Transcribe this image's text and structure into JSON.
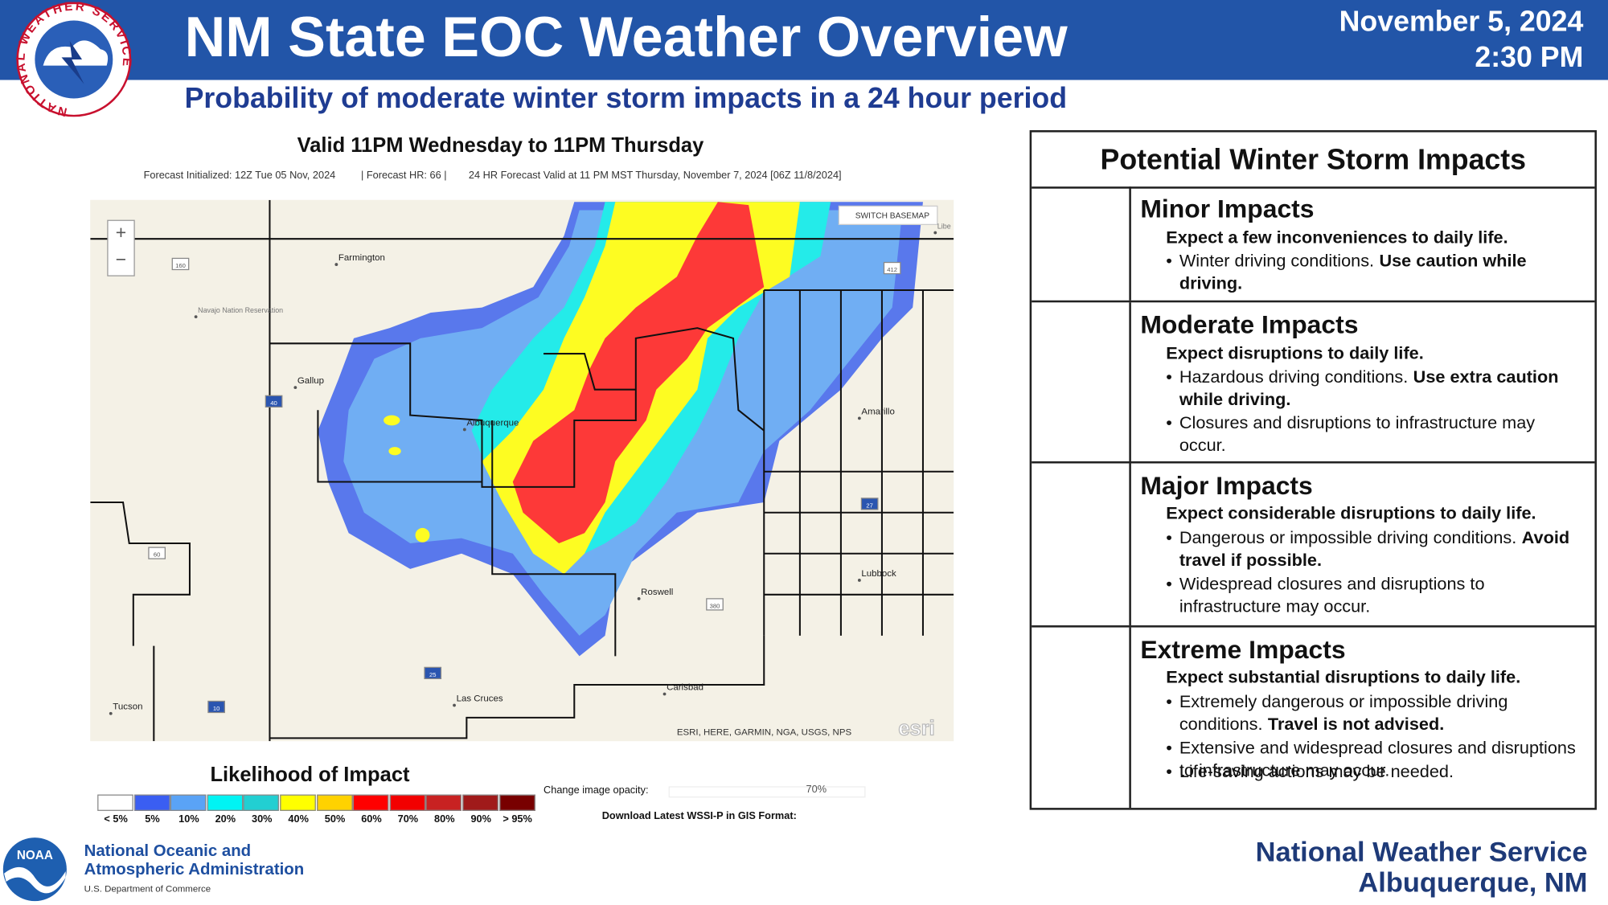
{
  "header": {
    "title": "NM State EOC Weather Overview",
    "date": "November 5, 2024",
    "time": "2:30 PM",
    "subtitle": "Probability of moderate winter storm impacts in a 24 hour period",
    "logo_text": "NATIONAL WEATHER SERVICE"
  },
  "map": {
    "title": "Valid 11PM Wednesday to 11PM Thursday",
    "info": [
      "Forecast Initialized: 12Z Tue 05 Nov, 2024",
      "| Forecast HR: 66 |",
      "24 HR Forecast Valid at 11 PM MST Thursday, November 7, 2024 [06Z 11/8/2024]"
    ],
    "switch": "SWITCH BASEMAP",
    "attribution": "ESRI, HERE, GARMIN, NGA, USGS, NPS",
    "esri": "esri",
    "zoom_in": "+",
    "zoom_out": "−",
    "places": [
      "Farmington",
      "Gallup",
      "Albuquerque",
      "Amarillo",
      "Lubbock",
      "Roswell",
      "Las Cruces",
      "Carlsbad",
      "Tucson",
      "Navajo Nation Reservation",
      "Libe"
    ],
    "shields": [
      "160",
      "40",
      "60",
      "25",
      "10",
      "27",
      "380",
      "412"
    ]
  },
  "legend": {
    "title": "Likelihood of Impact",
    "items": [
      {
        "label": "< 5%",
        "color": "#ffffff"
      },
      {
        "label": "5%",
        "color": "#3a5ef2"
      },
      {
        "label": "10%",
        "color": "#5aa3f6"
      },
      {
        "label": "20%",
        "color": "#00f4f4"
      },
      {
        "label": "30%",
        "color": "#22cfd2"
      },
      {
        "label": "40%",
        "color": "#ffff00"
      },
      {
        "label": "50%",
        "color": "#ffd200"
      },
      {
        "label": "60%",
        "color": "#ff0000"
      },
      {
        "label": "70%",
        "color": "#f20000"
      },
      {
        "label": "80%",
        "color": "#c82222"
      },
      {
        "label": "90%",
        "color": "#a01a1a"
      },
      {
        "label": "> 95%",
        "color": "#780000"
      }
    ],
    "opacity_label": "Change image opacity:",
    "opacity_value": "70%",
    "download": "Download Latest WSSI-P in GIS Format:"
  },
  "impacts": {
    "title": "Potential Winter Storm Impacts",
    "rows": [
      {
        "name": "Minor Impacts",
        "summary": "Expect a few inconveniences to daily life.",
        "bullets": [
          [
            {
              "t": "Winter driving conditions."
            },
            {
              "t": "Use caution while driving.",
              "b": true
            }
          ]
        ]
      },
      {
        "name": "Moderate Impacts",
        "summary": "Expect disruptions to daily life.",
        "bullets": [
          [
            {
              "t": "Hazardous driving conditions."
            },
            {
              "t": "Use extra caution while driving.",
              "b": true
            }
          ],
          [
            {
              "t": "Closures and disruptions to infrastructure may occur."
            }
          ]
        ]
      },
      {
        "name": "Major Impacts",
        "summary": "Expect considerable disruptions to daily life.",
        "bullets": [
          [
            {
              "t": "Dangerous or impossible driving conditions."
            },
            {
              "t": "Avoid travel if possible.",
              "b": true
            }
          ],
          [
            {
              "t": "Widespread closures and disruptions to infrastructure may occur."
            }
          ]
        ]
      },
      {
        "name": "Extreme Impacts",
        "summary": "Expect substantial disruptions to daily life.",
        "bullets": [
          [
            {
              "t": "Extremely dangerous or impossible driving conditions."
            },
            {
              "t": "Travel is not advised.",
              "b": true
            }
          ],
          [
            {
              "t": "Extensive and widespread closures and disruptions to infrastructure may occur."
            }
          ],
          [
            {
              "t": "Life-saving actions may be needed."
            }
          ]
        ]
      }
    ]
  },
  "footer": {
    "noaa_logo": "NOAA",
    "noaa": [
      "National Oceanic and",
      "Atmospheric Administration"
    ],
    "doc": "U.S. Department of Commerce",
    "nws": "National Weather Service",
    "office": "Albuquerque, NM"
  }
}
